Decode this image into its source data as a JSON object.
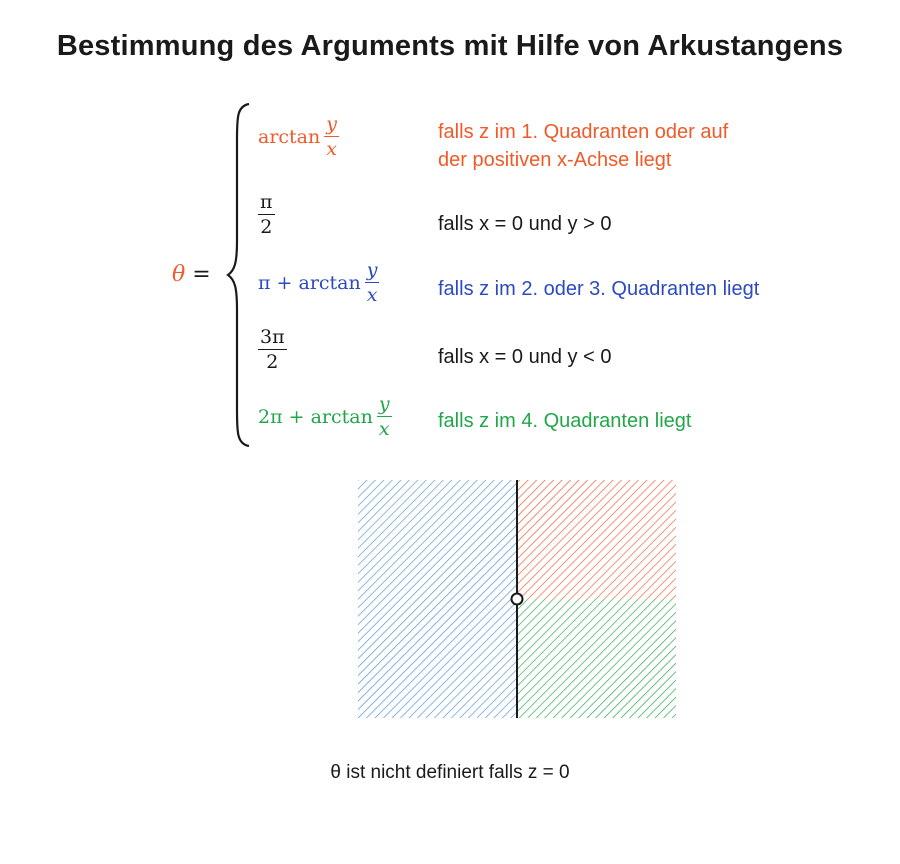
{
  "title": "Bestimmung des Arguments mit Hilfe von Arkustangens",
  "lhs": {
    "theta": "θ",
    "eq": "="
  },
  "cases": [
    {
      "expr_prefix": "arctan",
      "num": "y",
      "den": "x",
      "cond_line1": "falls z im 1. Quadranten oder auf",
      "cond_line2": "der positiven x-Achse liegt",
      "color": "#f05a28"
    },
    {
      "num": "π",
      "den": "2",
      "cond": "falls x = 0 und y > 0",
      "color": "#1a1a1a"
    },
    {
      "expr_prefix": "π + arctan",
      "num": "y",
      "den": "x",
      "cond": "falls z im 2. oder 3. Quadranten liegt",
      "color": "#2b4bbf"
    },
    {
      "num": "3π",
      "den": "2",
      "cond": "falls x = 0 und y < 0",
      "color": "#1a1a1a"
    },
    {
      "expr_prefix": "2π + arctan",
      "num": "y",
      "den": "x",
      "cond": "falls z im 4. Quadranten liegt",
      "color": "#22a64a"
    }
  ],
  "quadrant_colors": {
    "left": "#4a90d9",
    "top_right": "#f05a28",
    "bottom_right": "#22a64a"
  },
  "note": "θ ist nicht definiert falls z = 0"
}
